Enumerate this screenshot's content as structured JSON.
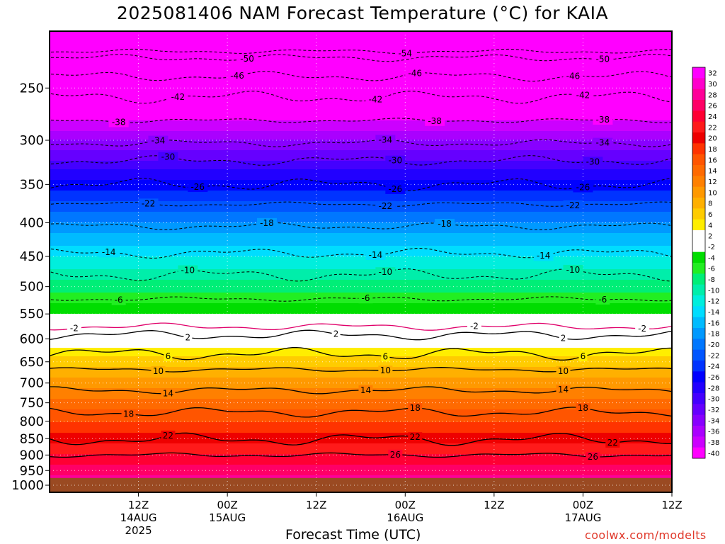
{
  "chart_data": {
    "type": "heatmap",
    "title": "2025081406 NAM Forecast Temperature (°C) for KAIA",
    "xlabel": "Forecast Time (UTC)",
    "ylabel": "",
    "y_axis": {
      "unit": "hPa",
      "scale": "log-pressure",
      "inverted": true,
      "range": [
        1025,
        205
      ],
      "ticks": [
        250,
        300,
        350,
        400,
        450,
        500,
        550,
        600,
        650,
        700,
        750,
        800,
        850,
        900,
        950,
        1000
      ]
    },
    "x_axis": {
      "unit": "forecast hour",
      "range": [
        -3,
        60
      ],
      "ticks": [
        {
          "hour": 6,
          "line1": "12Z",
          "line2": "14AUG",
          "line3": "2025"
        },
        {
          "hour": 15,
          "line1": "00Z",
          "line2": "15AUG",
          "line3": ""
        },
        {
          "hour": 24,
          "line1": "12Z",
          "line2": "",
          "line3": ""
        },
        {
          "hour": 33,
          "line1": "00Z",
          "line2": "16AUG",
          "line3": ""
        },
        {
          "hour": 42,
          "line1": "12Z",
          "line2": "",
          "line3": ""
        },
        {
          "hour": 51,
          "line1": "00Z",
          "line2": "17AUG",
          "line3": ""
        },
        {
          "hour": 60,
          "line1": "12Z",
          "line2": "",
          "line3": ""
        }
      ]
    },
    "grid": true,
    "ground_level_hpa": 975,
    "colorbar": {
      "placement": "right",
      "levels": [
        32,
        30,
        28,
        26,
        24,
        22,
        20,
        18,
        16,
        14,
        12,
        10,
        8,
        6,
        4,
        2,
        -2,
        -4,
        -6,
        -8,
        -10,
        -12,
        -14,
        -16,
        -18,
        -20,
        -22,
        -24,
        -26,
        -28,
        -30,
        -32,
        -34,
        -36,
        -38,
        -40
      ],
      "colors": [
        "#ff00ff",
        "#ff00cc",
        "#ff0099",
        "#ff0066",
        "#ff0033",
        "#ff1a1a",
        "#ee0000",
        "#ff3300",
        "#ff5500",
        "#ff6a00",
        "#ff8000",
        "#ff9900",
        "#ffb000",
        "#ffcc00",
        "#ffee00",
        "#ffffff",
        "#ffffff",
        "#00dd00",
        "#22ee22",
        "#00ee77",
        "#00eeaa",
        "#00eedd",
        "#00ddff",
        "#00bbff",
        "#0099ff",
        "#0077ff",
        "#0055ff",
        "#0033ff",
        "#0000ff",
        "#2200ff",
        "#4400ff",
        "#6600ff",
        "#8800ff",
        "#aa00ff",
        "#cc00ff",
        "#ff00ff"
      ]
    },
    "profile": [
      {
        "p": 205,
        "t": -56
      },
      {
        "p": 250,
        "t": -45
      },
      {
        "p": 300,
        "t": -34
      },
      {
        "p": 350,
        "t": -25
      },
      {
        "p": 400,
        "t": -18
      },
      {
        "p": 450,
        "t": -12
      },
      {
        "p": 500,
        "t": -7
      },
      {
        "p": 550,
        "t": -2
      },
      {
        "p": 600,
        "t": 2
      },
      {
        "p": 650,
        "t": 7
      },
      {
        "p": 700,
        "t": 11
      },
      {
        "p": 750,
        "t": 15
      },
      {
        "p": 800,
        "t": 18
      },
      {
        "p": 850,
        "t": 21
      },
      {
        "p": 900,
        "t": 24
      },
      {
        "p": 950,
        "t": 27
      },
      {
        "p": 975,
        "t": 29
      }
    ],
    "isotherms": [
      {
        "t": -54,
        "p": 220,
        "dashed": true,
        "color": "#000000",
        "label_hours": [
          33
        ]
      },
      {
        "t": -50,
        "p": 225,
        "dashed": true,
        "color": "#000000",
        "label_hours": [
          17,
          53
        ]
      },
      {
        "t": -46,
        "p": 240,
        "dashed": true,
        "color": "#000000",
        "label_hours": [
          16,
          34,
          50
        ]
      },
      {
        "t": -42,
        "p": 258,
        "dashed": true,
        "color": "#000000",
        "label_hours": [
          10,
          30,
          51
        ]
      },
      {
        "t": -38,
        "p": 280,
        "dashed": true,
        "color": "#000000",
        "label_hours": [
          4,
          36,
          53
        ]
      },
      {
        "t": -34,
        "p": 303,
        "dashed": true,
        "color": "#000000",
        "label_hours": [
          8,
          31,
          53
        ]
      },
      {
        "t": -30,
        "p": 322,
        "dashed": true,
        "color": "#000000",
        "label_hours": [
          9,
          32,
          52
        ]
      },
      {
        "t": -26,
        "p": 350,
        "dashed": true,
        "color": "#000000",
        "label_hours": [
          12,
          32,
          51
        ]
      },
      {
        "t": -22,
        "p": 375,
        "dashed": true,
        "color": "#000000",
        "label_hours": [
          7,
          31,
          50
        ]
      },
      {
        "t": -18,
        "p": 405,
        "dashed": true,
        "color": "#000000",
        "label_hours": [
          19,
          37
        ]
      },
      {
        "t": -14,
        "p": 445,
        "dashed": true,
        "color": "#000000",
        "label_hours": [
          3,
          30,
          47
        ]
      },
      {
        "t": -10,
        "p": 480,
        "dashed": true,
        "color": "#000000",
        "label_hours": [
          11,
          31,
          50
        ]
      },
      {
        "t": -6,
        "p": 522,
        "dashed": true,
        "color": "#000000",
        "label_hours": [
          4,
          29,
          53
        ]
      },
      {
        "t": -2,
        "p": 575,
        "dashed": false,
        "color": "#e0006a",
        "label_hours": [
          -0.5,
          40,
          57
        ]
      },
      {
        "t": 2,
        "p": 592,
        "dashed": false,
        "color": "#000000",
        "label_hours": [
          11,
          26,
          49
        ]
      },
      {
        "t": 6,
        "p": 632,
        "dashed": false,
        "color": "#000000",
        "label_hours": [
          9,
          31,
          51
        ]
      },
      {
        "t": 10,
        "p": 668,
        "dashed": false,
        "color": "#000000",
        "label_hours": [
          8,
          31,
          49
        ]
      },
      {
        "t": 14,
        "p": 718,
        "dashed": false,
        "color": "#000000",
        "label_hours": [
          9,
          29,
          49
        ]
      },
      {
        "t": 18,
        "p": 775,
        "dashed": false,
        "color": "#000000",
        "label_hours": [
          5,
          34,
          51
        ]
      },
      {
        "t": 22,
        "p": 852,
        "dashed": false,
        "color": "#000000",
        "label_hours": [
          9,
          34,
          54
        ]
      },
      {
        "t": 26,
        "p": 900,
        "dashed": false,
        "color": "#000000",
        "label_hours": [
          32,
          52
        ]
      }
    ]
  },
  "footer": {
    "credit": "coolwx.com/modelts"
  }
}
